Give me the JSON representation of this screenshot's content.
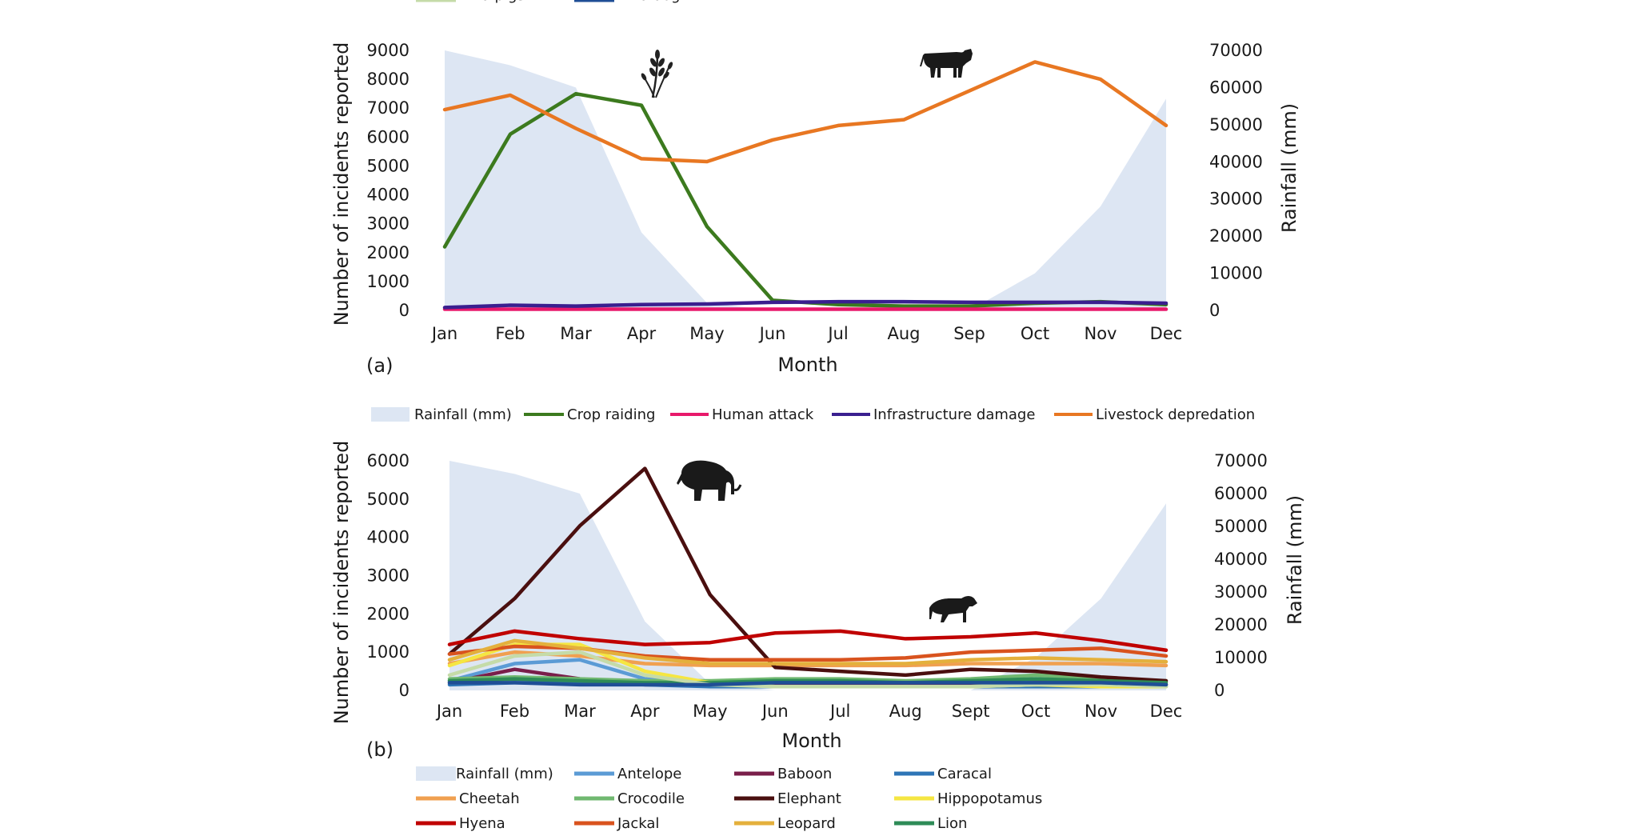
{
  "chart_data": [
    {
      "panel_label": "(a)",
      "type": "line",
      "xlabel": "Month",
      "ylabel": "Number of incidents reported",
      "ylabel_right": "Rainfall (mm)",
      "categories": [
        "Jan",
        "Feb",
        "Mar",
        "Apr",
        "May",
        "Jun",
        "Jul",
        "Aug",
        "Sep",
        "Oct",
        "Nov",
        "Dec"
      ],
      "ylim": [
        0,
        9000
      ],
      "yticks": [
        "9000",
        "8000",
        "7000",
        "6000",
        "5000",
        "4000",
        "3000",
        "2000",
        "1000",
        "0"
      ],
      "ylim_right": [
        0,
        70000
      ],
      "yticks_right": [
        "70000",
        "60000",
        "50000",
        "40000",
        "30000",
        "20000",
        "10000",
        "0"
      ],
      "grid": false,
      "legend_position": "bottom",
      "area": {
        "name": "Rainfall (mm)",
        "axis": "right",
        "color": "#dde6f3",
        "values": [
          70000,
          66000,
          60000,
          21000,
          2000,
          0,
          0,
          0,
          0,
          10000,
          28000,
          57000
        ]
      },
      "series": [
        {
          "name": "Crop raiding",
          "color": "#3c7a1e",
          "values": [
            2200,
            6100,
            7500,
            7100,
            2900,
            350,
            200,
            150,
            150,
            250,
            300,
            200
          ]
        },
        {
          "name": "Human attack",
          "color": "#e8196b",
          "values": [
            40,
            40,
            40,
            40,
            40,
            40,
            40,
            40,
            40,
            40,
            40,
            40
          ]
        },
        {
          "name": "Infrastructure damage",
          "color": "#3a1f8f",
          "values": [
            100,
            180,
            150,
            200,
            220,
            280,
            300,
            300,
            280,
            280,
            280,
            250
          ]
        },
        {
          "name": "Livestock depredation",
          "color": "#e87722",
          "values": [
            6950,
            7450,
            6300,
            5250,
            5150,
            5900,
            6400,
            6600,
            7600,
            8600,
            8000,
            6400
          ]
        }
      ],
      "icons": [
        "wheat-icon",
        "cow-icon"
      ]
    },
    {
      "panel_label": "(b)",
      "type": "line",
      "xlabel": "Month",
      "ylabel": "Number of incidents reported",
      "ylabel_right": "Rainfall (mm)",
      "categories": [
        "Jan",
        "Feb",
        "Mar",
        "Apr",
        "May",
        "Jun",
        "Jul",
        "Aug",
        "Sept",
        "Oct",
        "Nov",
        "Dec"
      ],
      "ylim": [
        0,
        6000
      ],
      "yticks": [
        "6000",
        "5000",
        "4000",
        "3000",
        "2000",
        "1000",
        "0"
      ],
      "ylim_right": [
        0,
        70000
      ],
      "yticks_right": [
        "70000",
        "60000",
        "50000",
        "40000",
        "30000",
        "20000",
        "10000",
        "0"
      ],
      "grid": false,
      "legend_position": "bottom",
      "area": {
        "name": "Rainfall (mm)",
        "axis": "right",
        "color": "#dde6f3",
        "values": [
          70000,
          66000,
          60000,
          21000,
          2000,
          0,
          0,
          0,
          0,
          10000,
          28000,
          57000
        ]
      },
      "series": [
        {
          "name": "Antelope",
          "color": "#5b9bd5",
          "values": [
            250,
            700,
            800,
            300,
            150,
            150,
            150,
            150,
            200,
            250,
            200,
            150
          ]
        },
        {
          "name": "Baboon",
          "color": "#7a1e4a",
          "values": [
            200,
            550,
            300,
            150,
            150,
            150,
            150,
            150,
            150,
            200,
            200,
            150
          ]
        },
        {
          "name": "Caracal",
          "color": "#2e75b6",
          "values": [
            150,
            200,
            200,
            150,
            100,
            100,
            100,
            100,
            100,
            100,
            100,
            100
          ]
        },
        {
          "name": "Cheetah",
          "color": "#f0a050",
          "values": [
            700,
            1000,
            900,
            700,
            650,
            650,
            650,
            650,
            700,
            700,
            700,
            650
          ]
        },
        {
          "name": "Crocodile",
          "color": "#70b870",
          "values": [
            300,
            350,
            300,
            250,
            250,
            300,
            300,
            250,
            300,
            400,
            300,
            250
          ]
        },
        {
          "name": "Elephant",
          "color": "#4a0f0f",
          "values": [
            950,
            2400,
            4300,
            5800,
            2500,
            600,
            500,
            400,
            550,
            500,
            350,
            250
          ]
        },
        {
          "name": "Hippopotamus",
          "color": "#f5e642",
          "values": [
            650,
            1200,
            1200,
            500,
            200,
            100,
            100,
            100,
            100,
            150,
            100,
            100
          ]
        },
        {
          "name": "Hyena",
          "color": "#c00000",
          "values": [
            1200,
            1550,
            1350,
            1200,
            1250,
            1500,
            1550,
            1350,
            1400,
            1500,
            1300,
            1050
          ]
        },
        {
          "name": "Jackal",
          "color": "#d9531e",
          "values": [
            950,
            1150,
            1100,
            900,
            800,
            800,
            800,
            850,
            1000,
            1050,
            1100,
            900
          ]
        },
        {
          "name": "Leopard",
          "color": "#e4b03c",
          "values": [
            800,
            1300,
            1100,
            850,
            700,
            700,
            700,
            700,
            800,
            850,
            800,
            750
          ]
        },
        {
          "name": "Lion",
          "color": "#2e8b57",
          "values": [
            250,
            300,
            250,
            200,
            200,
            250,
            250,
            200,
            250,
            300,
            250,
            200
          ]
        },
        {
          "name": "Wild pigs",
          "color": "#c5dba8",
          "values": [
            400,
            900,
            1000,
            400,
            150,
            100,
            100,
            100,
            100,
            150,
            150,
            100
          ]
        },
        {
          "name": "Wild dog",
          "color": "#1f4e96",
          "values": [
            200,
            200,
            150,
            150,
            150,
            200,
            200,
            200,
            200,
            200,
            200,
            150
          ]
        }
      ],
      "icons": [
        "elephant-icon",
        "hyena-icon"
      ]
    }
  ]
}
